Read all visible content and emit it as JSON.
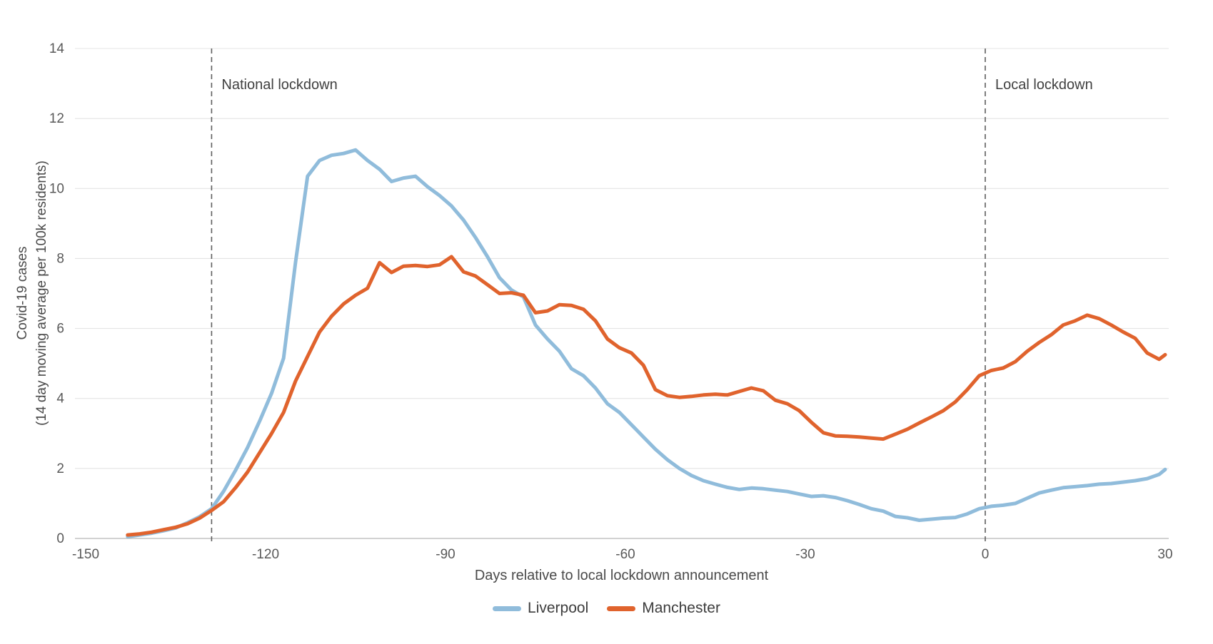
{
  "chart_data": {
    "type": "line",
    "title": "",
    "xlabel": "Days relative to local lockdown announcement",
    "ylabel_line1": "Covid-19 cases",
    "ylabel_line2": "(14 day moving average per 100k residents)",
    "x_ticks": [
      -150,
      -120,
      -90,
      -60,
      -30,
      0,
      30
    ],
    "y_ticks": [
      0,
      2,
      4,
      6,
      8,
      10,
      12,
      14
    ],
    "xlim": [
      -151.5,
      30.5
    ],
    "ylim": [
      0,
      14
    ],
    "grid": "horizontal",
    "legend_position": "bottom-center",
    "x": [
      -143,
      -141,
      -139,
      -137,
      -135,
      -133,
      -131,
      -129,
      -127,
      -125,
      -123,
      -121,
      -119,
      -117,
      -115,
      -113,
      -111,
      -109,
      -107,
      -105,
      -103,
      -101,
      -99,
      -97,
      -95,
      -93,
      -91,
      -89,
      -87,
      -85,
      -83,
      -81,
      -79,
      -77,
      -75,
      -73,
      -71,
      -69,
      -67,
      -65,
      -63,
      -61,
      -59,
      -57,
      -55,
      -53,
      -51,
      -49,
      -47,
      -45,
      -43,
      -41,
      -39,
      -37,
      -35,
      -33,
      -31,
      -29,
      -27,
      -25,
      -23,
      -21,
      -19,
      -17,
      -15,
      -13,
      -11,
      -9,
      -7,
      -5,
      -3,
      -1,
      1,
      3,
      5,
      7,
      9,
      11,
      13,
      15,
      17,
      19,
      21,
      23,
      25,
      27,
      29,
      30
    ],
    "series": [
      {
        "name": "Liverpool",
        "color": "#90BCDB",
        "values": [
          0.05,
          0.1,
          0.15,
          0.22,
          0.3,
          0.45,
          0.62,
          0.85,
          1.35,
          1.95,
          2.6,
          3.35,
          4.15,
          5.15,
          7.9,
          10.35,
          10.8,
          10.95,
          11.0,
          11.1,
          10.8,
          10.55,
          10.2,
          10.3,
          10.35,
          10.05,
          9.8,
          9.5,
          9.1,
          8.6,
          8.05,
          7.45,
          7.1,
          6.9,
          6.1,
          5.7,
          5.35,
          4.85,
          4.65,
          4.3,
          3.85,
          3.6,
          3.25,
          2.9,
          2.55,
          2.25,
          2.0,
          1.8,
          1.65,
          1.55,
          1.46,
          1.4,
          1.44,
          1.42,
          1.38,
          1.34,
          1.27,
          1.2,
          1.22,
          1.17,
          1.08,
          0.97,
          0.85,
          0.78,
          0.63,
          0.59,
          0.52,
          0.55,
          0.58,
          0.6,
          0.7,
          0.85,
          0.92,
          0.95,
          1.0,
          1.15,
          1.3,
          1.38,
          1.45,
          1.48,
          1.51,
          1.55,
          1.57,
          1.61,
          1.65,
          1.71,
          1.83,
          1.97
        ]
      },
      {
        "name": "Manchester",
        "color": "#E0632D",
        "values": [
          0.1,
          0.13,
          0.18,
          0.25,
          0.32,
          0.42,
          0.58,
          0.8,
          1.05,
          1.45,
          1.9,
          2.45,
          3.0,
          3.6,
          4.5,
          5.2,
          5.9,
          6.35,
          6.7,
          6.95,
          7.15,
          7.88,
          7.6,
          7.78,
          7.8,
          7.77,
          7.82,
          8.05,
          7.62,
          7.5,
          7.25,
          7.0,
          7.02,
          6.95,
          6.45,
          6.5,
          6.68,
          6.66,
          6.55,
          6.22,
          5.7,
          5.45,
          5.3,
          4.95,
          4.25,
          4.08,
          4.03,
          4.06,
          4.1,
          4.12,
          4.1,
          4.2,
          4.3,
          4.22,
          3.95,
          3.85,
          3.65,
          3.32,
          3.02,
          2.93,
          2.92,
          2.9,
          2.87,
          2.84,
          2.98,
          3.12,
          3.3,
          3.47,
          3.65,
          3.9,
          4.25,
          4.65,
          4.8,
          4.87,
          5.05,
          5.35,
          5.6,
          5.82,
          6.1,
          6.22,
          6.38,
          6.28,
          6.1,
          5.9,
          5.72,
          5.3,
          5.12,
          5.25
        ]
      }
    ],
    "annotations": [
      {
        "label": "National lockdown",
        "x": -129,
        "style": "dashed-vertical-line"
      },
      {
        "label": "Local lockdown",
        "x": 0,
        "style": "dashed-vertical-line"
      }
    ]
  },
  "colors": {
    "background": "#ffffff",
    "gridline": "#e4e4e4",
    "axis_line": "#c4c4c4",
    "dashed_line": "#5f5f5f",
    "tick_text": "#595959",
    "label_text": "#4a4a4a"
  }
}
